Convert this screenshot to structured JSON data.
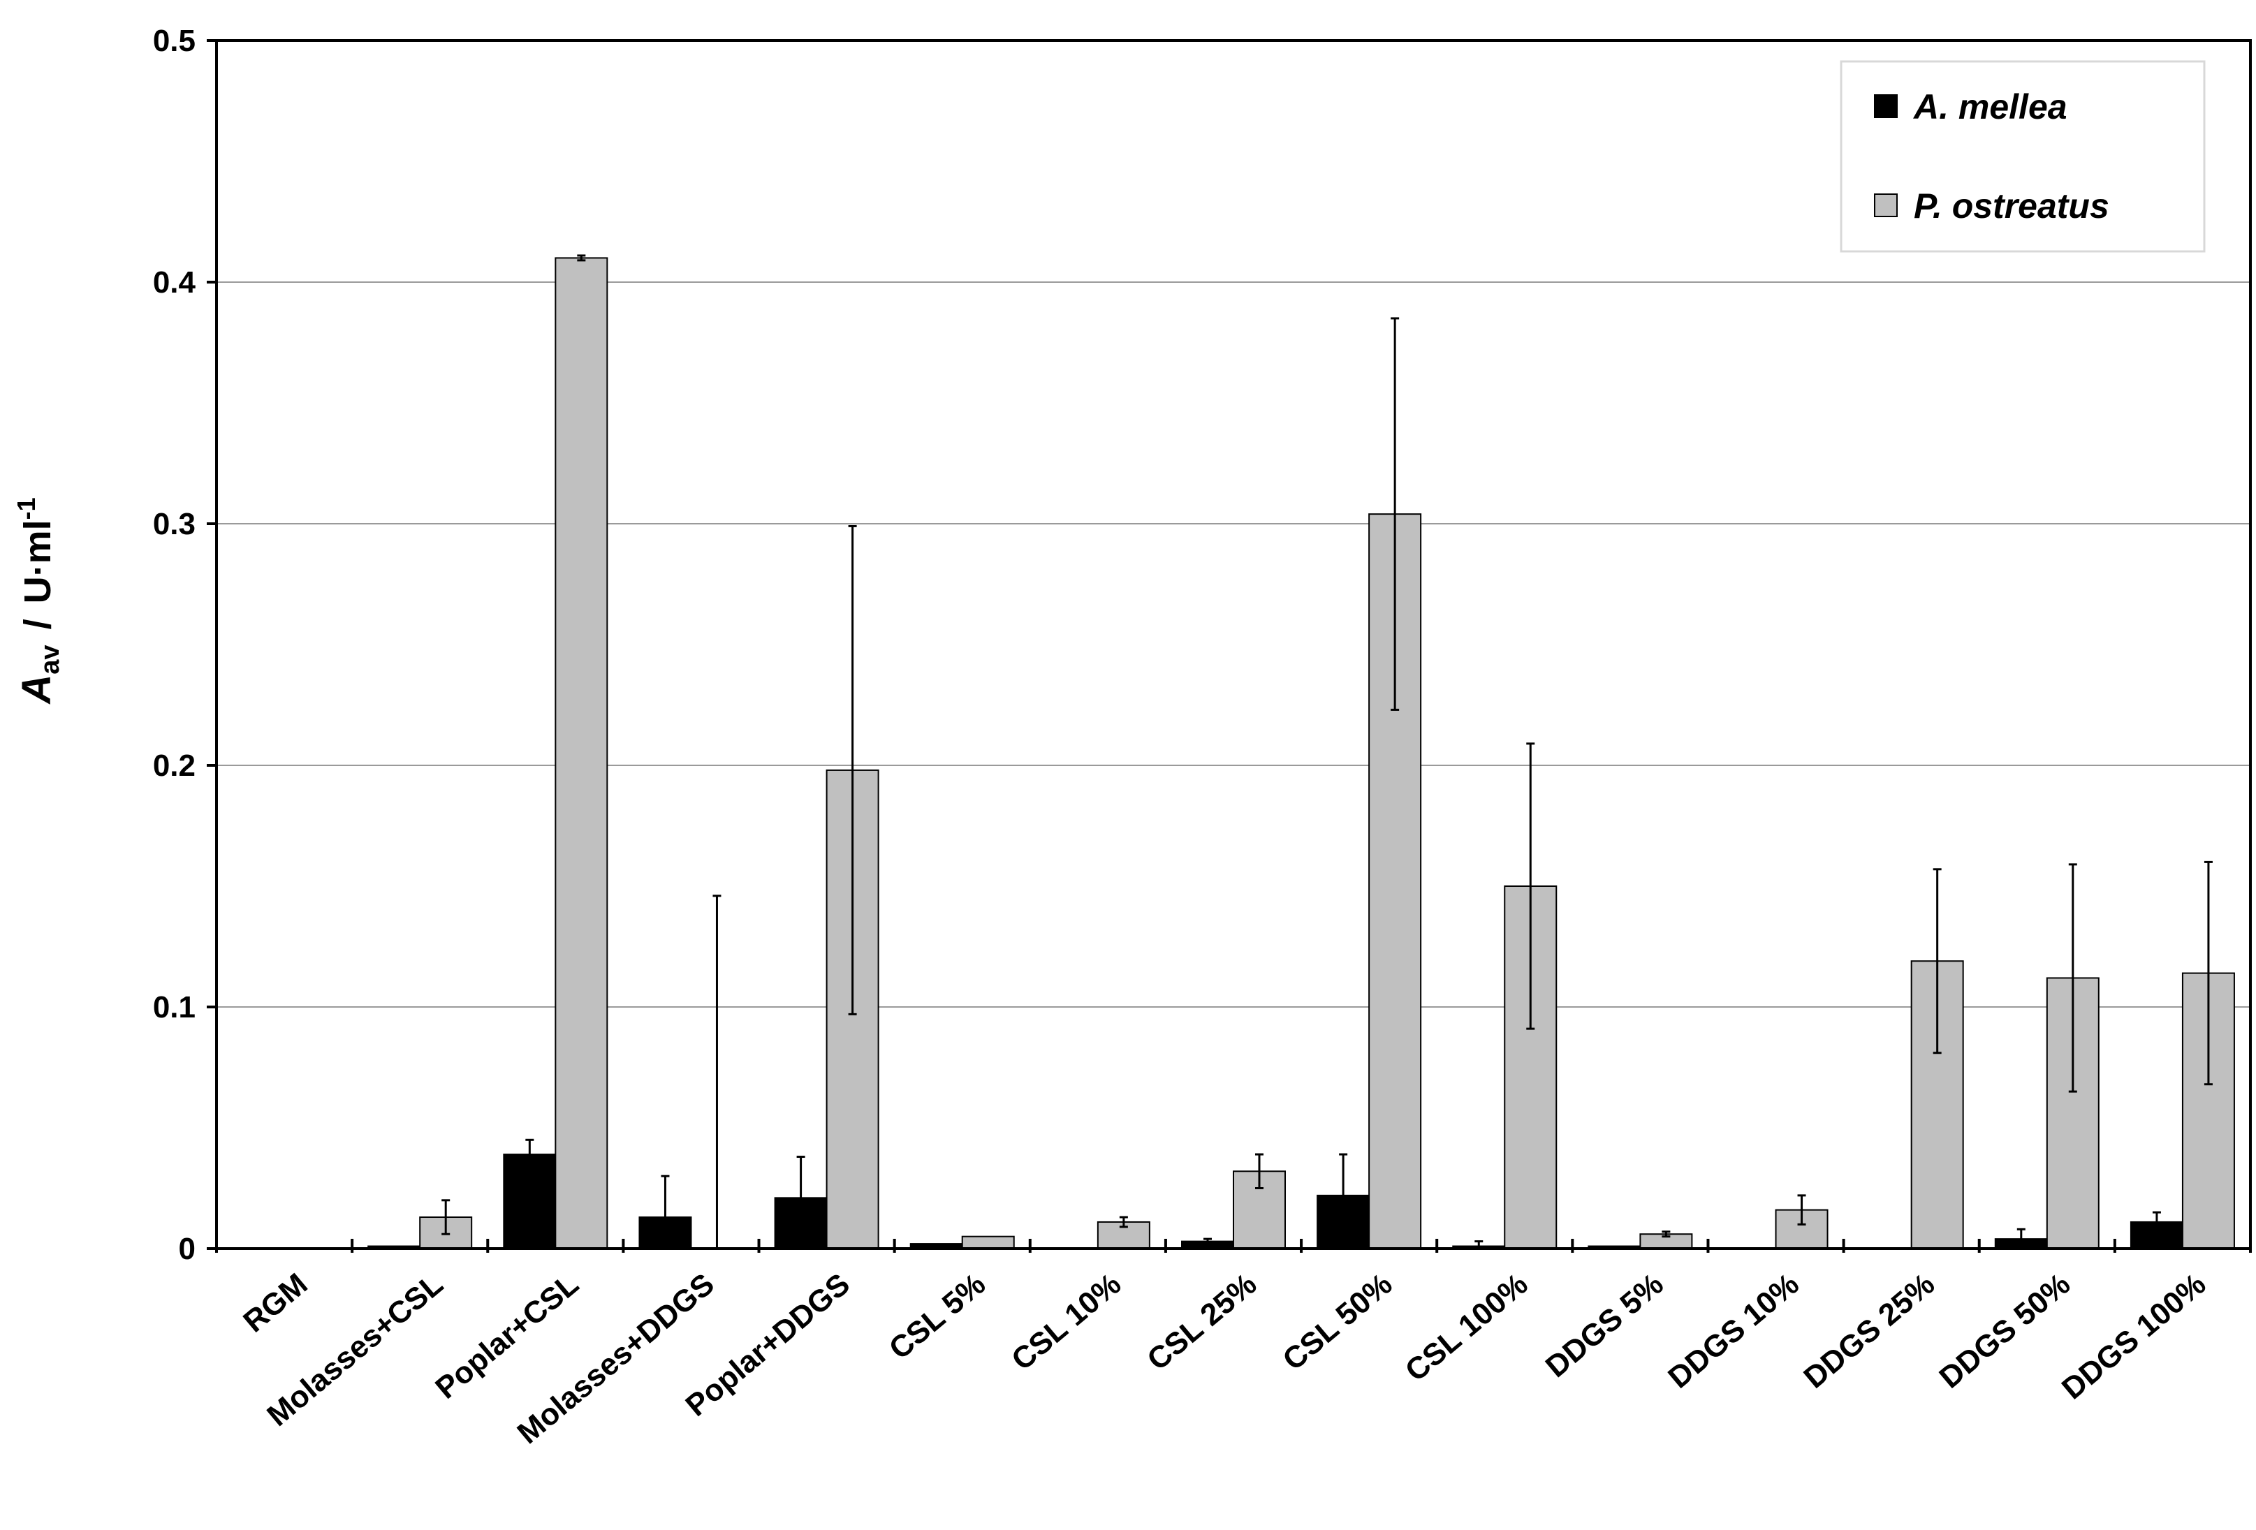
{
  "chart_data": {
    "type": "bar",
    "xlabel": "",
    "ylabel": {
      "main": "A",
      "sub": "av",
      "separator": "/",
      "unit": "U·ml",
      "exponent": "-1"
    },
    "ylim": [
      0,
      0.5
    ],
    "yticks": [
      "0",
      "0.1",
      "0.2",
      "0.3",
      "0.4",
      "0.5"
    ],
    "grid": true,
    "legend_position": "top-right",
    "categories": [
      "RGM",
      "Molasses+CSL",
      "Poplar+CSL",
      "Molasses+DDGS",
      "Poplar+DDGS",
      "CSL 5%",
      "CSL 10%",
      "CSL 25%",
      "CSL 50%",
      "CSL 100%",
      "DDGS 5%",
      "DDGS 10%",
      "DDGS 25%",
      "DDGS 50%",
      "DDGS 100%"
    ],
    "series": [
      {
        "name": "A. mellea",
        "color": "#000000",
        "values": [
          0,
          0.001,
          0.039,
          0.013,
          0.021,
          0.002,
          0.0,
          0.003,
          0.022,
          0.001,
          0.001,
          0.0,
          0.0,
          0.004,
          0.011
        ],
        "errors": [
          0,
          0,
          0.006,
          0.017,
          0.017,
          0,
          0,
          0.001,
          0.017,
          0.002,
          0,
          0,
          0,
          0.004,
          0.004
        ]
      },
      {
        "name": "P. ostreatus",
        "color": "#c0c0c0",
        "values": [
          0,
          0.013,
          0.41,
          0.0,
          0.198,
          0.005,
          0.011,
          0.032,
          0.304,
          0.15,
          0.006,
          0.016,
          0.119,
          0.112,
          0.114
        ],
        "errors": [
          0,
          0.007,
          0.001,
          0.146,
          0.101,
          0,
          0.002,
          0.007,
          0.081,
          0.059,
          0.001,
          0.006,
          0.038,
          0.047,
          0.046
        ]
      }
    ]
  }
}
